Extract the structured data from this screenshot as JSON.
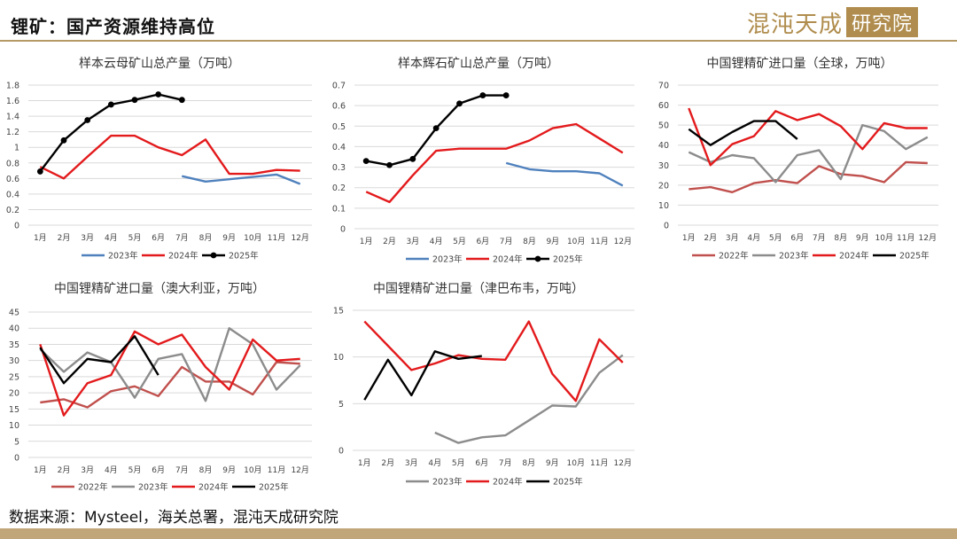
{
  "page": {
    "title": "锂矿：国产资源维持高位",
    "logo_text": "混沌天成",
    "logo_box": "研究院",
    "source": "数据来源：Mysteel，海关总署，混沌天成研究院"
  },
  "colors": {
    "2022": "#c0504d",
    "2023": "#4f81bd",
    "2024": "#e31a1c",
    "2025": "#000000",
    "2023_gray": "#8c8c8c",
    "accent": "#b59a66"
  },
  "chart_data": [
    {
      "type": "line",
      "title": "样本云母矿山总产量（万吨）",
      "categories": [
        "1月",
        "2月",
        "3月",
        "4月",
        "5月",
        "6月",
        "7月",
        "8月",
        "9月",
        "10月",
        "11月",
        "12月"
      ],
      "ylim": [
        0,
        1.8
      ],
      "yticks": [
        "0",
        "0.2",
        "0.4",
        "0.6",
        "0.8",
        "1",
        "1.2",
        "1.4",
        "1.6",
        "1.8"
      ],
      "grid": true,
      "legend": "bottom",
      "series": [
        {
          "name": "2023年",
          "color": "#4f81bd",
          "values": [
            null,
            null,
            null,
            null,
            null,
            null,
            0.63,
            0.56,
            0.59,
            0.62,
            0.65,
            0.53
          ]
        },
        {
          "name": "2024年",
          "color": "#e31a1c",
          "values": [
            0.75,
            0.6,
            0.88,
            1.15,
            1.15,
            1.0,
            0.9,
            1.1,
            0.66,
            0.66,
            0.71,
            0.7
          ]
        },
        {
          "name": "2025年",
          "color": "#000000",
          "markers": true,
          "values": [
            0.69,
            1.09,
            1.35,
            1.55,
            1.61,
            1.68,
            1.61,
            null,
            null,
            null,
            null,
            null
          ]
        }
      ]
    },
    {
      "type": "line",
      "title": "样本辉石矿山总产量（万吨）",
      "categories": [
        "1月",
        "2月",
        "3月",
        "4月",
        "5月",
        "6月",
        "7月",
        "8月",
        "9月",
        "10月",
        "11月",
        "12月"
      ],
      "ylim": [
        0,
        0.7
      ],
      "yticks": [
        "0",
        "0.1",
        "0.2",
        "0.3",
        "0.4",
        "0.5",
        "0.6",
        "0.7"
      ],
      "grid": true,
      "legend": "bottom",
      "series": [
        {
          "name": "2023年",
          "color": "#4f81bd",
          "values": [
            null,
            null,
            null,
            null,
            null,
            null,
            0.32,
            0.29,
            0.28,
            0.28,
            0.27,
            0.21
          ]
        },
        {
          "name": "2024年",
          "color": "#e31a1c",
          "values": [
            0.18,
            0.13,
            0.26,
            0.38,
            0.39,
            0.39,
            0.39,
            0.43,
            0.49,
            0.51,
            0.44,
            0.37
          ]
        },
        {
          "name": "2025年",
          "color": "#000000",
          "markers": true,
          "values": [
            0.33,
            0.31,
            0.34,
            0.49,
            0.61,
            0.65,
            0.65,
            null,
            null,
            null,
            null,
            null
          ]
        }
      ]
    },
    {
      "type": "line",
      "title": "中国锂精矿进口量（全球，万吨）",
      "categories": [
        "1月",
        "2月",
        "3月",
        "4月",
        "5月",
        "6月",
        "7月",
        "8月",
        "9月",
        "10月",
        "11月",
        "12月"
      ],
      "ylim": [
        0,
        70
      ],
      "yticks": [
        "0",
        "10",
        "20",
        "30",
        "40",
        "50",
        "60",
        "70"
      ],
      "grid": true,
      "legend": "bottom",
      "series": [
        {
          "name": "2022年",
          "color": "#c0504d",
          "values": [
            18,
            19,
            16.5,
            21,
            22.5,
            21,
            29.5,
            25.5,
            24.5,
            21.5,
            31.5,
            31
          ]
        },
        {
          "name": "2023年",
          "color": "#8c8c8c",
          "values": [
            36.5,
            31.5,
            35,
            33.5,
            21.5,
            35,
            37.5,
            23,
            50,
            47,
            38,
            44
          ]
        },
        {
          "name": "2024年",
          "color": "#e31a1c",
          "values": [
            58.5,
            30,
            40.5,
            44.5,
            57,
            52.5,
            55.5,
            49.5,
            38,
            51,
            48.5,
            48.5
          ]
        },
        {
          "name": "2025年",
          "color": "#000000",
          "values": [
            48,
            40,
            46.5,
            52,
            52,
            43,
            null,
            null,
            null,
            null,
            null,
            null
          ]
        }
      ]
    },
    {
      "type": "line",
      "title": "中国锂精矿进口量（澳大利亚，万吨）",
      "categories": [
        "1月",
        "2月",
        "3月",
        "4月",
        "5月",
        "6月",
        "7月",
        "8月",
        "9月",
        "10月",
        "11月",
        "12月"
      ],
      "ylim": [
        0,
        45
      ],
      "yticks": [
        "0",
        "5",
        "10",
        "15",
        "20",
        "25",
        "30",
        "35",
        "40",
        "45"
      ],
      "grid": true,
      "legend": "bottom",
      "series": [
        {
          "name": "2022年",
          "color": "#c0504d",
          "values": [
            17,
            18,
            15.5,
            20.5,
            22,
            19,
            28,
            23.5,
            23.5,
            19.5,
            29.5,
            29
          ]
        },
        {
          "name": "2023年",
          "color": "#8c8c8c",
          "values": [
            33.5,
            26.5,
            32.5,
            29.5,
            18.5,
            30.5,
            32,
            17.5,
            40,
            35,
            21,
            28.5
          ]
        },
        {
          "name": "2024年",
          "color": "#e31a1c",
          "values": [
            35,
            13,
            23,
            25.5,
            39,
            35,
            38,
            28,
            21,
            36.5,
            30,
            30.5
          ]
        },
        {
          "name": "2025年",
          "color": "#000000",
          "values": [
            34,
            23,
            30.5,
            29.5,
            37.5,
            25.5,
            null,
            null,
            null,
            null,
            null,
            null
          ]
        }
      ]
    },
    {
      "type": "line",
      "title": "中国锂精矿进口量（津巴布韦，万吨）",
      "categories": [
        "1月",
        "2月",
        "3月",
        "4月",
        "5月",
        "6月",
        "7月",
        "8月",
        "9月",
        "10月",
        "11月",
        "12月"
      ],
      "ylim": [
        0,
        15
      ],
      "yticks": [
        "0",
        "5",
        "10",
        "15"
      ],
      "grid": true,
      "legend": "bottom",
      "series": [
        {
          "name": "2023年",
          "color": "#8c8c8c",
          "values": [
            null,
            null,
            null,
            1.9,
            0.8,
            1.4,
            1.6,
            3.2,
            4.8,
            4.7,
            8.3,
            10.2
          ]
        },
        {
          "name": "2024年",
          "color": "#e31a1c",
          "values": [
            13.8,
            11.2,
            8.6,
            9.3,
            10.2,
            9.8,
            9.7,
            13.8,
            8.2,
            5.3,
            11.9,
            9.4
          ]
        },
        {
          "name": "2025年",
          "color": "#000000",
          "values": [
            5.4,
            9.7,
            5.9,
            10.6,
            9.8,
            10.1,
            null,
            null,
            null,
            null,
            null,
            null
          ]
        }
      ]
    }
  ]
}
